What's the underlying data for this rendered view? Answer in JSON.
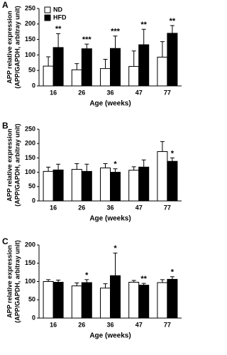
{
  "chart_data": [
    {
      "type": "bar",
      "panel_label": "A",
      "ylabel": [
        "APP relative expression",
        "(APP/GAPDH, arbitray unit)"
      ],
      "xlabel": "Age (weeks)",
      "categories": [
        "16",
        "26",
        "36",
        "47",
        "77"
      ],
      "ylim": [
        0,
        250
      ],
      "yticks": [
        0,
        50,
        100,
        150,
        200,
        250
      ],
      "series": [
        {
          "name": "ND",
          "color": "#ffffff",
          "values": [
            64,
            52,
            56,
            63,
            93
          ],
          "errors": [
            30,
            20,
            30,
            50,
            50
          ]
        },
        {
          "name": "HFD",
          "color": "#000000",
          "values": [
            124,
            120,
            121,
            133,
            170
          ],
          "errors": [
            45,
            15,
            40,
            50,
            25
          ]
        }
      ],
      "annotations": [
        "**",
        "***",
        "***",
        "**",
        "**"
      ]
    },
    {
      "type": "bar",
      "panel_label": "B",
      "ylabel": [
        "APP relative expression",
        "(APP/GAPDH, arbitray unit)"
      ],
      "xlabel": "Age (weeks)",
      "categories": [
        "16",
        "26",
        "36",
        "47",
        "77"
      ],
      "ylim": [
        0,
        250
      ],
      "yticks": [
        0,
        50,
        100,
        150,
        200,
        250
      ],
      "series": [
        {
          "color": "#ffffff",
          "values": [
            103,
            110,
            115,
            107,
            172
          ],
          "errors": [
            15,
            20,
            15,
            12,
            35
          ]
        },
        {
          "color": "#000000",
          "values": [
            108,
            103,
            100,
            118,
            138
          ],
          "errors": [
            20,
            25,
            12,
            25,
            12
          ]
        }
      ],
      "annotations": [
        null,
        null,
        "*",
        null,
        "*"
      ]
    },
    {
      "type": "bar",
      "panel_label": "C",
      "ylabel": [
        "APP relative expression",
        "(APP/GAPDH, arbitray unit)"
      ],
      "xlabel": "Age (weeks)",
      "categories": [
        "16",
        "26",
        "36",
        "47",
        "77"
      ],
      "ylim": [
        0,
        200
      ],
      "yticks": [
        0,
        50,
        100,
        150,
        200
      ],
      "series": [
        {
          "color": "#ffffff",
          "values": [
            100,
            88,
            82,
            98,
            97
          ],
          "errors": [
            5,
            8,
            12,
            5,
            8
          ]
        },
        {
          "color": "#000000",
          "values": [
            98,
            97,
            116,
            90,
            106
          ],
          "errors": [
            6,
            8,
            62,
            5,
            7
          ]
        }
      ],
      "annotations": [
        null,
        "*",
        "*",
        "**",
        "*"
      ]
    }
  ]
}
